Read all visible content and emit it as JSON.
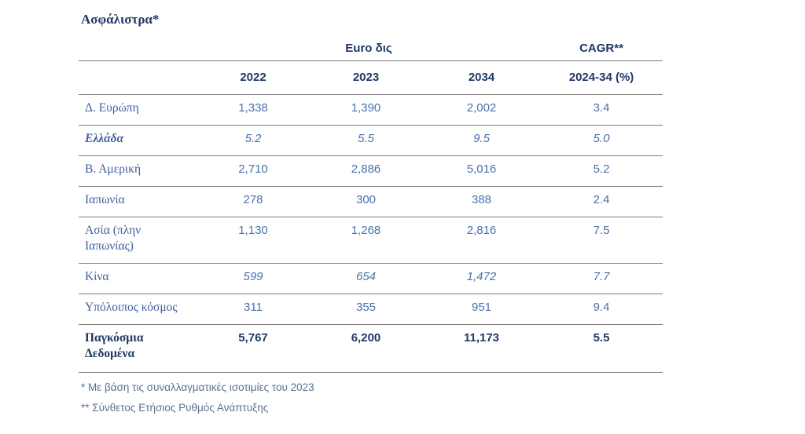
{
  "title": "Ασφάλιστρα*",
  "table": {
    "group_headers": {
      "euro": "Euro δις",
      "cagr": "CAGR**"
    },
    "columns": {
      "y2022": "2022",
      "y2023": "2023",
      "y2034": "2034",
      "cagr": "2024-34 (%)"
    },
    "rows": [
      {
        "label": "Δ. Ευρώπη",
        "values": [
          "1,338",
          "1,390",
          "2,002",
          "3.4"
        ]
      },
      {
        "label": "Ελλάδα",
        "values": [
          "5.2",
          "5.5",
          "9.5",
          "5.0"
        ]
      },
      {
        "label": "Β. Αμερική",
        "values": [
          "2,710",
          "2,886",
          "5,016",
          "5.2"
        ]
      },
      {
        "label": "Ιαπωνία",
        "values": [
          "278",
          "300",
          "388",
          "2.4"
        ]
      },
      {
        "label": "Ασία (πλην Ιαπωνίας)",
        "values": [
          "1,130",
          "1,268",
          "2,816",
          "7.5"
        ]
      },
      {
        "label": "Κίνα",
        "values": [
          "599",
          "654",
          "1,472",
          "7.7"
        ]
      },
      {
        "label": "Υπόλοιπος κόσμος",
        "values": [
          "311",
          "355",
          "951",
          "9.4"
        ]
      },
      {
        "label": "Παγκόσμια Δεδομένα",
        "values": [
          "5,767",
          "6,200",
          "11,173",
          "5.5"
        ]
      }
    ]
  },
  "footnotes": {
    "first": "* Με βάση τις συναλλαγματικές ισοτιμίες του 2023",
    "second": "** Σύνθετος Ετήσιος Ρυθμός Ανάπτυξης"
  },
  "colors": {
    "title_navy": "#1f3864",
    "label_blue": "#3f5f9f",
    "value_blue": "#4a72ab",
    "footnote_blue_gray": "#5c7291",
    "border_gray": "#7f7f7f",
    "background": "#ffffff"
  },
  "chart_data": {
    "type": "table",
    "title": "Ασφάλιστρα*",
    "unit": "Euro δις",
    "categories": [
      "2022",
      "2023",
      "2034",
      "2024-34 (%) CAGR"
    ],
    "series": [
      {
        "name": "Δ. Ευρώπη",
        "values": [
          1338,
          1390,
          2002,
          3.4
        ]
      },
      {
        "name": "Ελλάδα",
        "values": [
          5.2,
          5.5,
          9.5,
          5.0
        ]
      },
      {
        "name": "Β. Αμερική",
        "values": [
          2710,
          2886,
          5016,
          5.2
        ]
      },
      {
        "name": "Ιαπωνία",
        "values": [
          278,
          300,
          388,
          2.4
        ]
      },
      {
        "name": "Ασία (πλην Ιαπωνίας)",
        "values": [
          1130,
          1268,
          2816,
          7.5
        ]
      },
      {
        "name": "Κίνα",
        "values": [
          599,
          654,
          1472,
          7.7
        ]
      },
      {
        "name": "Υπόλοιπος κόσμος",
        "values": [
          311,
          355,
          951,
          9.4
        ]
      },
      {
        "name": "Παγκόσμια Δεδομένα",
        "values": [
          5767,
          6200,
          11173,
          5.5
        ]
      }
    ]
  }
}
